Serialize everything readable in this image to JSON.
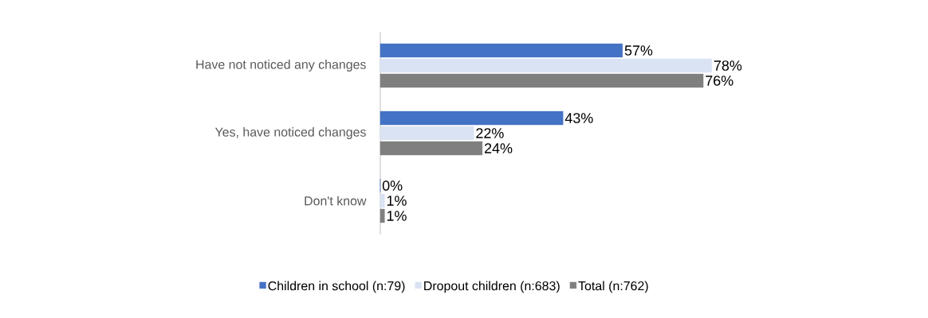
{
  "chart_data": {
    "type": "bar",
    "orientation": "horizontal",
    "categories": [
      "Have not noticed any changes",
      "Yes, have noticed changes",
      "Don't know"
    ],
    "series": [
      {
        "name": "Children in school (n:79)",
        "color": "#4472c4",
        "values": [
          57,
          43,
          0
        ],
        "value_labels": [
          "57%",
          "43%",
          "0%"
        ]
      },
      {
        "name": "Dropout children (n:683)",
        "color": "#dae3f3",
        "values": [
          78,
          22,
          1
        ],
        "value_labels": [
          "78%",
          "22%",
          "1%"
        ]
      },
      {
        "name": "Total (n:762)",
        "color": "#7f7f7f",
        "values": [
          76,
          24,
          1
        ],
        "value_labels": [
          "76%",
          "24%",
          "1%"
        ]
      }
    ],
    "tick_labels": "y",
    "legend": "bottom"
  }
}
